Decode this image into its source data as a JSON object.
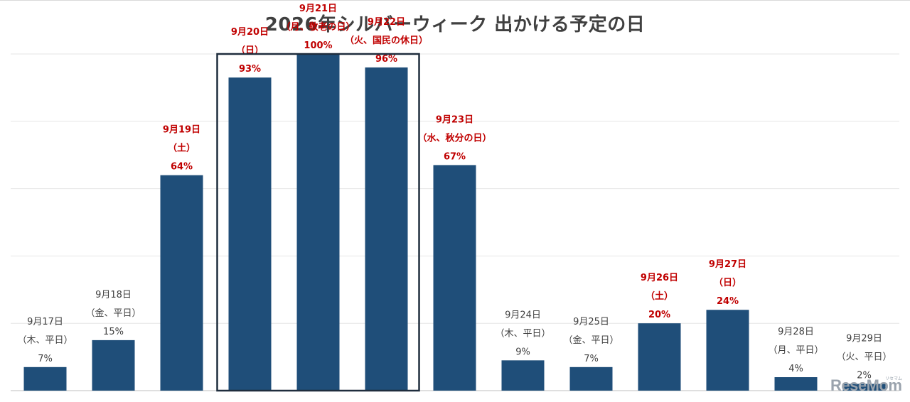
{
  "chart_data": {
    "type": "bar",
    "title": "2026年シルバーウィーク 出かける予定の日",
    "ylim": [
      0,
      100
    ],
    "grid": true,
    "legend": "none",
    "bar_color": "#1f4e79",
    "holiday_label_color": "#c00000",
    "weekday_label_color": "#404040",
    "highlight_box": [
      "9月20日",
      "9月21日",
      "9月22日"
    ],
    "categories": [
      {
        "date": "9月17日",
        "day": "（木、平日）",
        "value": 7,
        "value_label": "7%",
        "holiday": false
      },
      {
        "date": "9月18日",
        "day": "（金、平日）",
        "value": 15,
        "value_label": "15%",
        "holiday": false
      },
      {
        "date": "9月19日",
        "day": "（土）",
        "value": 64,
        "value_label": "64%",
        "holiday": true
      },
      {
        "date": "9月20日",
        "day": "（日）",
        "value": 93,
        "value_label": "93%",
        "holiday": true
      },
      {
        "date": "9月21日",
        "day": "（月、敬老の日）",
        "value": 100,
        "value_label": "100%",
        "holiday": true
      },
      {
        "date": "9月22日",
        "day": "（火、国民の休日）",
        "value": 96,
        "value_label": "96%",
        "holiday": true
      },
      {
        "date": "9月23日",
        "day": "（水、秋分の日）",
        "value": 67,
        "value_label": "67%",
        "holiday": true
      },
      {
        "date": "9月24日",
        "day": "（木、平日）",
        "value": 9,
        "value_label": "9%",
        "holiday": false
      },
      {
        "date": "9月25日",
        "day": "（金、平日）",
        "value": 7,
        "value_label": "7%",
        "holiday": false
      },
      {
        "date": "9月26日",
        "day": "（土）",
        "value": 20,
        "value_label": "20%",
        "holiday": true
      },
      {
        "date": "9月27日",
        "day": "（日）",
        "value": 24,
        "value_label": "24%",
        "holiday": true
      },
      {
        "date": "9月28日",
        "day": "（月、平日）",
        "value": 4,
        "value_label": "4%",
        "holiday": false
      },
      {
        "date": "9月29日",
        "day": "（火、平日）",
        "value": 2,
        "value_label": "2%",
        "holiday": false
      }
    ]
  },
  "watermark": {
    "text": "ReseMom",
    "kana": "リセマム"
  }
}
